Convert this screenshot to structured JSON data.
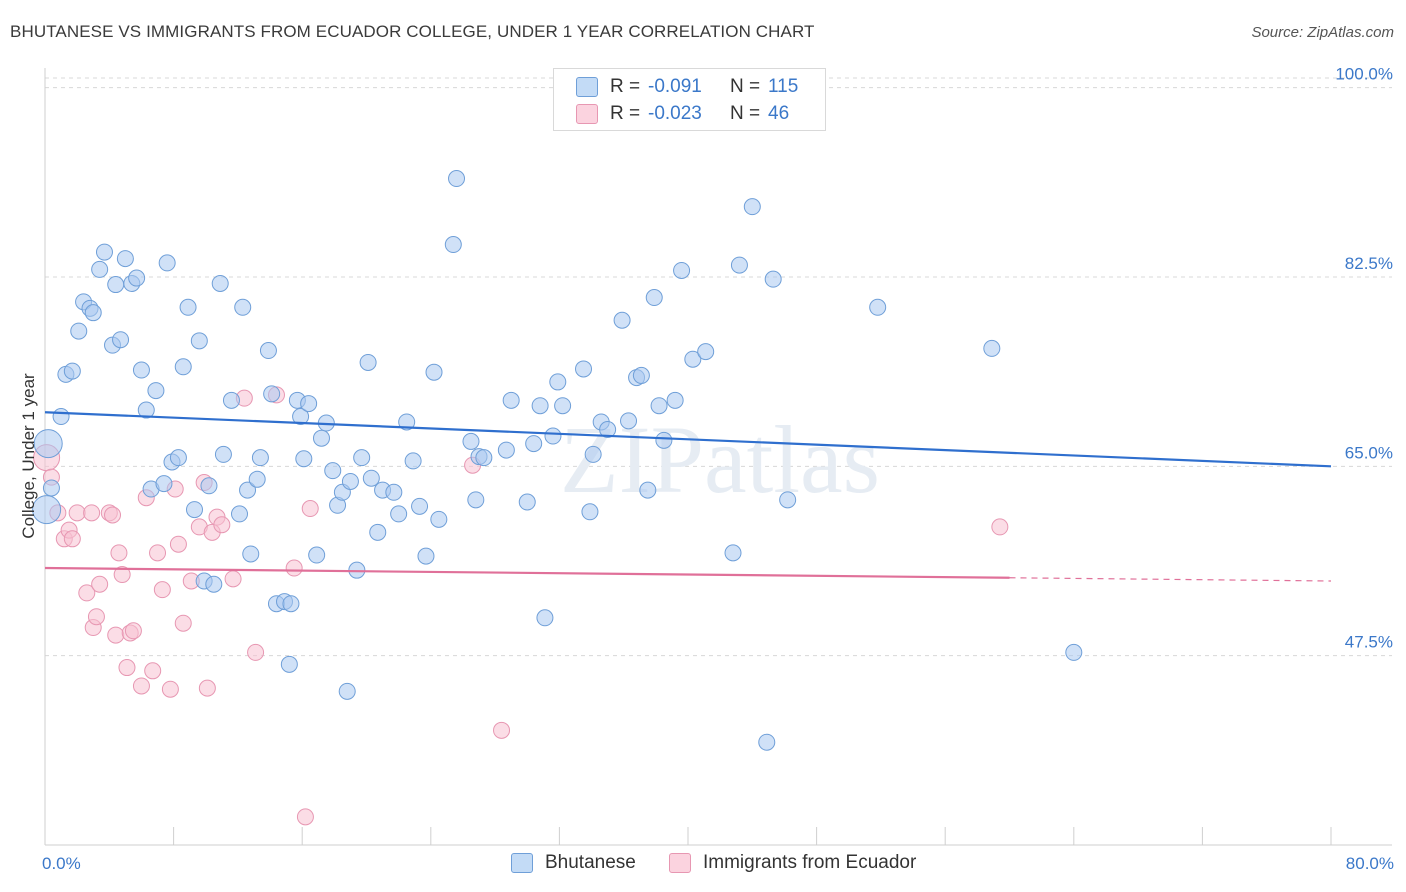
{
  "title": "BHUTANESE VS IMMIGRANTS FROM ECUADOR COLLEGE, UNDER 1 YEAR CORRELATION CHART",
  "source": "Source: ZipAtlas.com",
  "watermark": "ZIPatlas",
  "legend": {
    "rows": [
      {
        "r_label": "R =",
        "r_value": "-0.091",
        "n_label": "N =",
        "n_value": "115",
        "color": "#9ec4ee"
      },
      {
        "r_label": "R =",
        "r_value": "-0.023",
        "n_label": "N =",
        "n_value": "46",
        "color": "#f4b6c8"
      }
    ]
  },
  "bottom_legend": [
    {
      "label": "Bhutanese",
      "color": "#9ec4ee"
    },
    {
      "label": "Immigrants from Ecuador",
      "color": "#f4b6c8"
    }
  ],
  "colors": {
    "blue_fill": "#a9c9f0",
    "blue_stroke": "#6f9fd8",
    "blue_line": "#2f6fce",
    "pink_fill": "#f7c1d2",
    "pink_stroke": "#e797b2",
    "pink_line": "#e07099",
    "tick": "#3b78c9",
    "grid": "#d8d8d8"
  },
  "chart_data": {
    "type": "scatter",
    "title": "BHUTANESE VS IMMIGRANTS FROM ECUADOR COLLEGE, UNDER 1 YEAR CORRELATION CHART",
    "xlabel": "",
    "ylabel": "College, Under 1 year",
    "xlim": [
      0,
      80
    ],
    "ylim": [
      30,
      102
    ],
    "x_tick_labels": [
      "0.0%",
      "80.0%"
    ],
    "y_ticks": [
      {
        "value": 100,
        "label": "100.0%"
      },
      {
        "value": 82.5,
        "label": "82.5%"
      },
      {
        "value": 65,
        "label": "65.0%"
      },
      {
        "value": 47.5,
        "label": "47.5%"
      }
    ],
    "series": [
      {
        "name": "Bhutanese",
        "trend": {
          "x": [
            0,
            80
          ],
          "y": [
            70.0,
            65.0
          ]
        },
        "points": [
          [
            0.1,
            61.0
          ],
          [
            0.2,
            67.1
          ],
          [
            1.0,
            69.6
          ],
          [
            1.3,
            73.5
          ],
          [
            1.7,
            73.8
          ],
          [
            2.1,
            77.5
          ],
          [
            2.4,
            80.2
          ],
          [
            2.8,
            79.6
          ],
          [
            3.0,
            79.2
          ],
          [
            3.4,
            83.2
          ],
          [
            3.7,
            84.8
          ],
          [
            4.2,
            76.2
          ],
          [
            4.4,
            81.8
          ],
          [
            4.7,
            76.7
          ],
          [
            5.0,
            84.2
          ],
          [
            5.4,
            81.9
          ],
          [
            5.7,
            82.4
          ],
          [
            6.0,
            73.9
          ],
          [
            6.3,
            70.2
          ],
          [
            6.6,
            62.9
          ],
          [
            6.9,
            72.0
          ],
          [
            7.4,
            63.4
          ],
          [
            7.6,
            83.8
          ],
          [
            7.9,
            65.4
          ],
          [
            8.3,
            65.8
          ],
          [
            8.6,
            74.2
          ],
          [
            8.9,
            79.7
          ],
          [
            9.3,
            61.0
          ],
          [
            9.6,
            76.6
          ],
          [
            9.9,
            54.4
          ],
          [
            10.2,
            63.2
          ],
          [
            10.5,
            54.1
          ],
          [
            10.9,
            81.9
          ],
          [
            11.1,
            66.1
          ],
          [
            11.6,
            71.1
          ],
          [
            12.1,
            60.6
          ],
          [
            12.3,
            79.7
          ],
          [
            12.6,
            62.8
          ],
          [
            12.8,
            56.9
          ],
          [
            13.2,
            63.8
          ],
          [
            13.4,
            65.8
          ],
          [
            13.9,
            75.7
          ],
          [
            14.1,
            71.7
          ],
          [
            14.4,
            52.3
          ],
          [
            14.9,
            52.5
          ],
          [
            15.2,
            46.7
          ],
          [
            15.3,
            52.3
          ],
          [
            15.7,
            71.1
          ],
          [
            15.9,
            69.6
          ],
          [
            16.1,
            65.7
          ],
          [
            16.4,
            70.8
          ],
          [
            16.9,
            56.8
          ],
          [
            17.2,
            67.6
          ],
          [
            17.5,
            69.0
          ],
          [
            17.9,
            64.6
          ],
          [
            18.2,
            61.4
          ],
          [
            18.5,
            62.6
          ],
          [
            18.8,
            44.2
          ],
          [
            19.0,
            63.6
          ],
          [
            19.4,
            55.4
          ],
          [
            19.7,
            65.8
          ],
          [
            20.1,
            74.6
          ],
          [
            20.3,
            63.9
          ],
          [
            20.7,
            58.9
          ],
          [
            21.0,
            62.8
          ],
          [
            21.7,
            62.6
          ],
          [
            22.0,
            60.6
          ],
          [
            22.5,
            69.1
          ],
          [
            22.9,
            65.5
          ],
          [
            23.3,
            61.3
          ],
          [
            23.7,
            56.7
          ],
          [
            24.2,
            73.7
          ],
          [
            24.5,
            60.1
          ],
          [
            25.4,
            85.5
          ],
          [
            25.6,
            91.6
          ],
          [
            26.5,
            67.3
          ],
          [
            26.8,
            61.9
          ],
          [
            27.0,
            65.9
          ],
          [
            27.3,
            65.8
          ],
          [
            28.7,
            66.5
          ],
          [
            29.0,
            71.1
          ],
          [
            30.0,
            61.7
          ],
          [
            30.4,
            67.1
          ],
          [
            30.8,
            70.6
          ],
          [
            31.1,
            51.0
          ],
          [
            31.6,
            67.8
          ],
          [
            31.9,
            72.8
          ],
          [
            32.2,
            70.6
          ],
          [
            33.5,
            74.0
          ],
          [
            33.9,
            60.8
          ],
          [
            34.1,
            66.1
          ],
          [
            34.6,
            69.1
          ],
          [
            35.0,
            68.4
          ],
          [
            35.9,
            78.5
          ],
          [
            36.3,
            69.2
          ],
          [
            36.8,
            73.2
          ],
          [
            37.1,
            73.4
          ],
          [
            37.5,
            62.8
          ],
          [
            37.9,
            80.6
          ],
          [
            38.2,
            70.6
          ],
          [
            38.5,
            67.4
          ],
          [
            39.2,
            71.1
          ],
          [
            39.6,
            83.1
          ],
          [
            40.3,
            74.9
          ],
          [
            41.1,
            75.6
          ],
          [
            42.8,
            57.0
          ],
          [
            43.2,
            83.6
          ],
          [
            44.0,
            89.0
          ],
          [
            44.9,
            39.5
          ],
          [
            45.3,
            82.3
          ],
          [
            46.2,
            61.9
          ],
          [
            51.8,
            79.7
          ],
          [
            58.9,
            75.9
          ],
          [
            64.0,
            47.8
          ],
          [
            0.4,
            63.0
          ]
        ]
      },
      {
        "name": "Immigrants from Ecuador",
        "trend": {
          "x": [
            0,
            60
          ],
          "y": [
            55.6,
            54.7
          ]
        },
        "dashed_extension": {
          "x": [
            60,
            80
          ],
          "y": [
            54.7,
            54.4
          ]
        },
        "points": [
          [
            0.1,
            65.8
          ],
          [
            0.4,
            64.0
          ],
          [
            0.8,
            60.7
          ],
          [
            1.2,
            58.3
          ],
          [
            1.5,
            59.1
          ],
          [
            1.7,
            58.3
          ],
          [
            2.0,
            60.7
          ],
          [
            2.6,
            53.3
          ],
          [
            2.9,
            60.7
          ],
          [
            3.0,
            50.1
          ],
          [
            3.2,
            51.1
          ],
          [
            3.4,
            54.1
          ],
          [
            4.0,
            60.7
          ],
          [
            4.2,
            60.5
          ],
          [
            4.4,
            49.4
          ],
          [
            4.6,
            57.0
          ],
          [
            4.8,
            55.0
          ],
          [
            5.1,
            46.4
          ],
          [
            5.3,
            49.6
          ],
          [
            5.5,
            49.8
          ],
          [
            6.0,
            44.7
          ],
          [
            6.3,
            62.1
          ],
          [
            6.7,
            46.1
          ],
          [
            7.0,
            57.0
          ],
          [
            7.3,
            53.6
          ],
          [
            7.8,
            44.4
          ],
          [
            8.1,
            62.9
          ],
          [
            8.3,
            57.8
          ],
          [
            8.6,
            50.5
          ],
          [
            9.1,
            54.4
          ],
          [
            9.6,
            59.4
          ],
          [
            9.9,
            63.5
          ],
          [
            10.1,
            44.5
          ],
          [
            10.4,
            58.9
          ],
          [
            10.7,
            60.3
          ],
          [
            11.0,
            59.6
          ],
          [
            11.7,
            54.6
          ],
          [
            12.4,
            71.3
          ],
          [
            13.1,
            47.8
          ],
          [
            14.4,
            71.6
          ],
          [
            15.5,
            55.6
          ],
          [
            16.5,
            61.1
          ],
          [
            16.2,
            32.6
          ],
          [
            26.6,
            65.1
          ],
          [
            28.4,
            40.6
          ],
          [
            59.4,
            59.4
          ]
        ]
      }
    ]
  }
}
